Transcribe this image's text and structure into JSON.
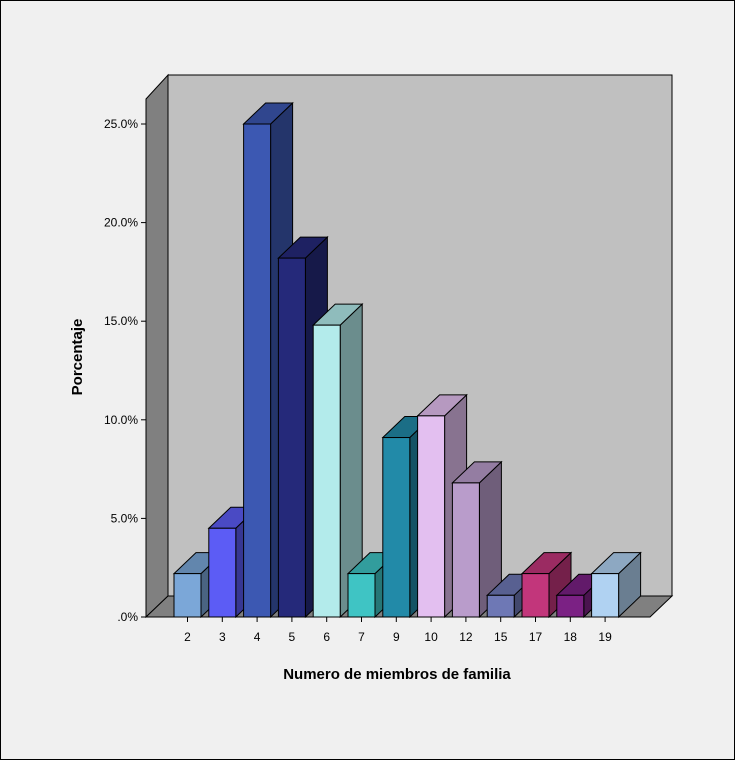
{
  "chart_data": {
    "type": "bar",
    "xlabel": "Numero de miembros de familia",
    "ylabel": "Porcentaje",
    "categories": [
      "2",
      "3",
      "4",
      "5",
      "6",
      "7",
      "9",
      "10",
      "12",
      "15",
      "17",
      "18",
      "19"
    ],
    "values": [
      2.2,
      4.5,
      25.0,
      18.2,
      14.8,
      2.2,
      9.1,
      10.2,
      6.8,
      1.1,
      2.2,
      1.1,
      2.2
    ],
    "y_ticks": [
      ".0%",
      "5.0%",
      "10.0%",
      "15.0%",
      "20.0%",
      "25.0%"
    ],
    "ylim": [
      0,
      25
    ],
    "grid": false,
    "legend": "none",
    "colors": [
      "#7ba7d8",
      "#5c5cf5",
      "#3c58b2",
      "#25297a",
      "#b3ebeb",
      "#3fc4c4",
      "#228aa8",
      "#e3bff0",
      "#b99ccb",
      "#6e78b5",
      "#c2367b",
      "#7b2184",
      "#b0d2f2"
    ]
  }
}
